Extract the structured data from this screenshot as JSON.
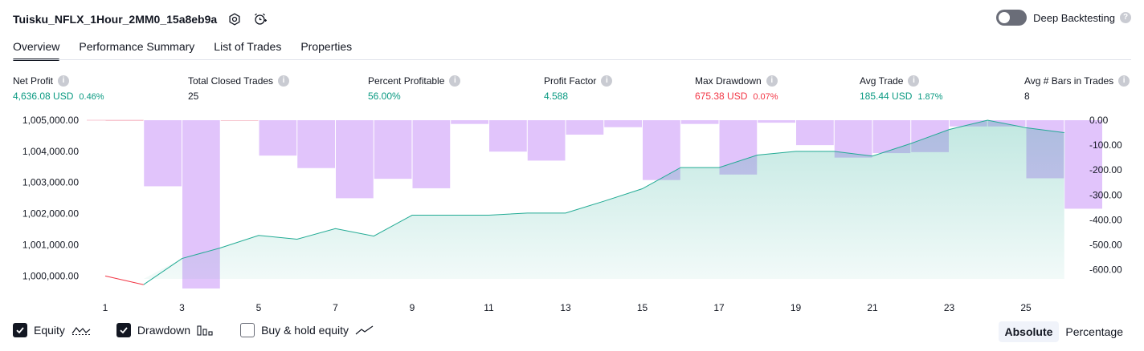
{
  "header": {
    "title": "Tuisku_NFLX_1Hour_2MM0_15a8eb9a",
    "deep_backtesting_label": "Deep Backtesting"
  },
  "tabs": [
    {
      "label": "Overview",
      "active": true
    },
    {
      "label": "Performance Summary",
      "active": false
    },
    {
      "label": "List of Trades",
      "active": false
    },
    {
      "label": "Properties",
      "active": false
    }
  ],
  "metrics": {
    "net_profit": {
      "label": "Net Profit",
      "value": "4,636.08 USD",
      "pct": "0.46%"
    },
    "total_closed_trades": {
      "label": "Total Closed Trades",
      "value": "25"
    },
    "percent_profitable": {
      "label": "Percent Profitable",
      "value": "56.00%"
    },
    "profit_factor": {
      "label": "Profit Factor",
      "value": "4.588"
    },
    "max_drawdown": {
      "label": "Max Drawdown",
      "value": "675.38 USD",
      "pct": "0.07%"
    },
    "avg_trade": {
      "label": "Avg Trade",
      "value": "185.44 USD",
      "pct": "1.87%"
    },
    "avg_bars": {
      "label": "Avg # Bars in Trades",
      "value": "8"
    }
  },
  "chart_data": {
    "type": "area",
    "x": [
      1,
      2,
      3,
      4,
      5,
      6,
      7,
      8,
      9,
      10,
      11,
      12,
      13,
      14,
      15,
      16,
      17,
      18,
      19,
      20,
      21,
      22,
      23,
      24,
      25,
      26
    ],
    "x_ticks": [
      "1",
      "3",
      "5",
      "7",
      "9",
      "11",
      "13",
      "15",
      "17",
      "19",
      "21",
      "23",
      "25"
    ],
    "left_axis": {
      "ticks": [
        "1,005,000.00",
        "1,004,000.00",
        "1,003,000.00",
        "1,002,000.00",
        "1,001,000.00",
        "1,000,000.00"
      ],
      "ylim": [
        999700,
        1005000
      ]
    },
    "right_axis": {
      "ticks": [
        "0.00",
        "-100.00",
        "-200.00",
        "-300.00",
        "-400.00",
        "-500.00",
        "-600.00"
      ],
      "ylim": [
        -675,
        0
      ]
    },
    "series": [
      {
        "name": "Equity",
        "values": [
          1000000,
          999720,
          1000560,
          1000900,
          1001300,
          1001180,
          1001520,
          1001280,
          1001950,
          1001950,
          1001950,
          1002020,
          1002020,
          1002400,
          1002800,
          1003480,
          1003480,
          1003880,
          1004000,
          1004000,
          1003850,
          1004250,
          1004700,
          1005000,
          1004760,
          1004600
        ],
        "color": "#22ab94"
      },
      {
        "name": "Drawdown",
        "values": [
          0,
          -265,
          -675,
          0,
          -142,
          -192,
          -313,
          -235,
          -273,
          -15,
          -126,
          -162,
          -58,
          -28,
          -240,
          -15,
          -218,
          -10,
          -100,
          -150,
          -132,
          -128,
          -25,
          -25,
          -233,
          -355
        ],
        "color": "#e1c4fb"
      }
    ]
  },
  "legend": [
    {
      "label": "Equity",
      "checked": true
    },
    {
      "label": "Drawdown",
      "checked": true
    },
    {
      "label": "Buy & hold equity",
      "checked": false
    }
  ],
  "mode": {
    "absolute_label": "Absolute",
    "percentage_label": "Percentage",
    "active": "Absolute"
  }
}
